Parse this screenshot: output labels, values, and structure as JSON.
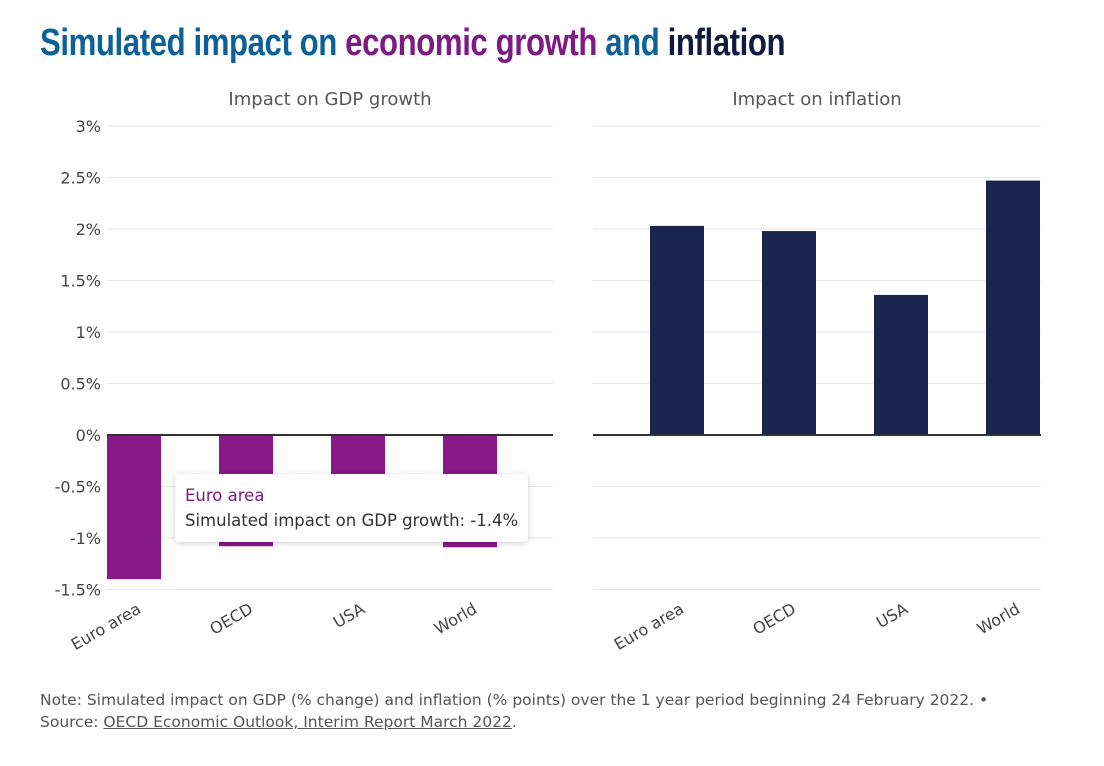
{
  "title": {
    "part1": "Simulated impact on ",
    "part2": "economic growth",
    "part3": " and ",
    "part4": "inflation",
    "colors": {
      "part1": "#0e6198",
      "part2": "#7d1a83",
      "part3": "#0e6198",
      "part4": "#101a3e"
    }
  },
  "chart_data": [
    {
      "type": "bar",
      "title": "Impact on GDP growth",
      "categories": [
        "Euro area",
        "OECD",
        "USA",
        "World"
      ],
      "values": [
        -1.4,
        -1.08,
        -0.88,
        -1.09
      ],
      "ylim": [
        -1.5,
        3
      ],
      "yticks": [
        "-1.5%",
        "-1%",
        "-0.5%",
        "0%",
        "0.5%",
        "1%",
        "1.5%",
        "2%",
        "2.5%",
        "3%"
      ],
      "ytick_values": [
        -1.5,
        -1,
        -0.5,
        0,
        0.5,
        1,
        1.5,
        2,
        2.5,
        3
      ],
      "grid": true,
      "color": "#881a87"
    },
    {
      "type": "bar",
      "title": "Impact on inflation",
      "categories": [
        "Euro area",
        "OECD",
        "USA",
        "World"
      ],
      "values": [
        2.03,
        1.98,
        1.36,
        2.47
      ],
      "ylim": [
        -1.5,
        3
      ],
      "grid": true,
      "color": "#1a254d"
    }
  ],
  "tooltip": {
    "title": "Euro area",
    "text": "Simulated impact on GDP growth: -1.4%",
    "color": "#7d1a83"
  },
  "note": {
    "text": "Note: Simulated impact on GDP (% change) and inflation (% points) over the 1 year period beginning 24 February 2022. • Source: ",
    "link": "OECD Economic Outlook, Interim Report March 2022",
    "end": "."
  }
}
